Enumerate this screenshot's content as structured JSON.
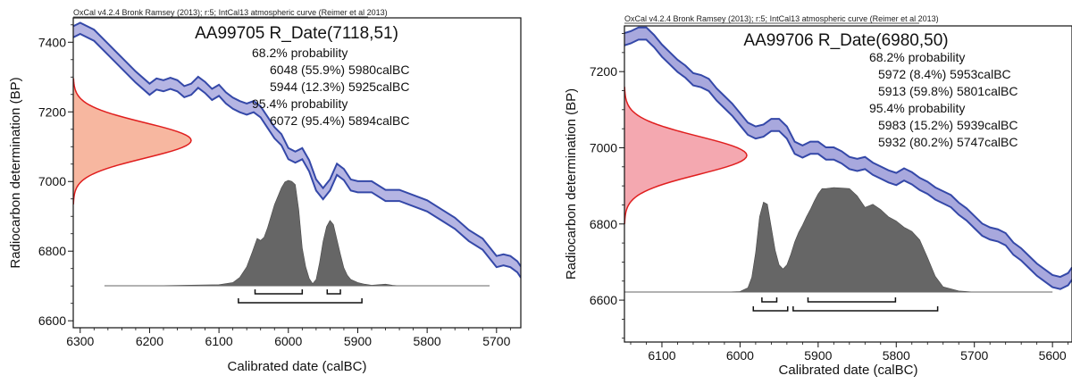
{
  "chart_data": [
    {
      "type": "area",
      "header": "OxCal v4.2.4 Bronk Ramsey (2013); r:5; IntCal13 atmospheric curve (Reimer et al 2013)",
      "title": "AA99705 R_Date(7118,51)",
      "xlabel": "Calibrated date (calBC)",
      "ylabel": "Radiocarbon determination (BP)",
      "xlim": [
        6310,
        5665
      ],
      "ylim": [
        6580,
        7470
      ],
      "xticks": [
        6300,
        6200,
        6100,
        6000,
        5900,
        5800,
        5700
      ],
      "yticks": [
        6600,
        6800,
        7000,
        7200,
        7400
      ],
      "probability_text": [
        "68.2% probability",
        "6048 (55.9%) 5980calBC",
        "5944 (12.3%) 5925calBC",
        "95.4% probability",
        "6072 (95.4%) 5894calBC"
      ],
      "radiocarbon_date": {
        "mean": 7118,
        "sigma": 51
      },
      "calibration_curve": {
        "x": [
          6310,
          6300,
          6280,
          6260,
          6240,
          6220,
          6200,
          6190,
          6180,
          6170,
          6160,
          6150,
          6140,
          6130,
          6120,
          6110,
          6100,
          6090,
          6080,
          6070,
          6060,
          6050,
          6040,
          6030,
          6020,
          6010,
          6000,
          5990,
          5980,
          5970,
          5960,
          5950,
          5940,
          5930,
          5920,
          5910,
          5900,
          5880,
          5860,
          5840,
          5820,
          5800,
          5780,
          5760,
          5740,
          5720,
          5700,
          5690,
          5680,
          5670,
          5665
        ],
        "y": [
          7430,
          7440,
          7420,
          7380,
          7340,
          7300,
          7265,
          7280,
          7275,
          7282,
          7275,
          7258,
          7265,
          7285,
          7270,
          7250,
          7262,
          7240,
          7225,
          7215,
          7208,
          7215,
          7200,
          7170,
          7140,
          7120,
          7080,
          7070,
          7080,
          7045,
          6990,
          6965,
          6990,
          7035,
          7020,
          6990,
          6985,
          6985,
          6960,
          6960,
          6945,
          6930,
          6905,
          6880,
          6845,
          6820,
          6770,
          6775,
          6770,
          6755,
          6740
        ],
        "half_width": 16
      },
      "calibrated_distribution": {
        "x": [
          6265,
          6200,
          6100,
          6080,
          6070,
          6060,
          6052,
          6045,
          6040,
          6035,
          6030,
          6025,
          6020,
          6015,
          6010,
          6005,
          6000,
          5995,
          5990,
          5985,
          5980,
          5975,
          5970,
          5965,
          5960,
          5955,
          5950,
          5945,
          5940,
          5935,
          5930,
          5925,
          5920,
          5915,
          5910,
          5900,
          5890,
          5880,
          5860,
          5850,
          5840,
          5800,
          5710
        ],
        "density": [
          0,
          0,
          0.01,
          0.03,
          0.08,
          0.18,
          0.32,
          0.45,
          0.43,
          0.46,
          0.55,
          0.66,
          0.77,
          0.85,
          0.93,
          0.985,
          1.0,
          0.99,
          0.96,
          0.72,
          0.36,
          0.18,
          0.07,
          0.02,
          0.06,
          0.22,
          0.42,
          0.56,
          0.62,
          0.58,
          0.44,
          0.3,
          0.17,
          0.1,
          0.06,
          0.03,
          0.015,
          0.005,
          0.015,
          0.005,
          0,
          0,
          0
        ]
      },
      "ranges_68": [
        [
          6048,
          5980
        ],
        [
          5944,
          5925
        ]
      ],
      "ranges_95": [
        [
          6072,
          5894
        ]
      ],
      "colors": {
        "curve_fill": "#b5b5e3",
        "curve_line": "#3448a8",
        "date_fill": "#f7b7a0",
        "date_line": "#e01e1e",
        "calibrated_fill": "#666666"
      }
    },
    {
      "type": "area",
      "header": "OxCal v4.2.4 Bronk Ramsey (2013); r:5; IntCal13 atmospheric curve (Reimer et al 2013)",
      "title": "AA99706 R_Date(6980,50)",
      "xlabel": "Calibrated date (calBC)",
      "ylabel": "Radiocarbon determination (BP)",
      "xlim": [
        6148,
        5575
      ],
      "ylim": [
        6490,
        7320
      ],
      "xticks": [
        6100,
        6000,
        5900,
        5800,
        5700,
        5600
      ],
      "yticks": [
        6600,
        6800,
        7000,
        7200
      ],
      "probability_text": [
        "68.2% probability",
        "5972 (8.4%) 5953calBC",
        "5913 (59.8%) 5801calBC",
        "95.4% probability",
        "5983 (15.2%) 5939calBC",
        "5932 (80.2%) 5747calBC"
      ],
      "radiocarbon_date": {
        "mean": 6980,
        "sigma": 50
      },
      "calibration_curve": {
        "x": [
          6148,
          6140,
          6130,
          6120,
          6110,
          6100,
          6090,
          6080,
          6070,
          6060,
          6050,
          6040,
          6030,
          6020,
          6010,
          6000,
          5990,
          5980,
          5970,
          5960,
          5950,
          5940,
          5930,
          5920,
          5910,
          5900,
          5890,
          5880,
          5870,
          5860,
          5850,
          5840,
          5830,
          5820,
          5810,
          5800,
          5790,
          5780,
          5770,
          5760,
          5750,
          5740,
          5730,
          5720,
          5710,
          5700,
          5690,
          5680,
          5670,
          5660,
          5650,
          5640,
          5630,
          5620,
          5610,
          5600,
          5590,
          5580,
          5575
        ],
        "y": [
          7285,
          7290,
          7300,
          7300,
          7280,
          7255,
          7235,
          7215,
          7200,
          7180,
          7175,
          7165,
          7140,
          7120,
          7100,
          7075,
          7050,
          7040,
          7045,
          7060,
          7060,
          7040,
          7000,
          6990,
          7000,
          7000,
          6985,
          6985,
          6975,
          6960,
          6955,
          6960,
          6945,
          6935,
          6925,
          6918,
          6930,
          6920,
          6905,
          6895,
          6880,
          6870,
          6860,
          6840,
          6825,
          6805,
          6785,
          6775,
          6770,
          6760,
          6735,
          6720,
          6700,
          6680,
          6665,
          6650,
          6645,
          6655,
          6670
        ],
        "half_width": 16
      },
      "calibrated_distribution": {
        "x": [
          6148,
          6020,
          6000,
          5990,
          5985,
          5980,
          5975,
          5970,
          5965,
          5960,
          5955,
          5950,
          5945,
          5940,
          5935,
          5930,
          5925,
          5920,
          5915,
          5910,
          5905,
          5900,
          5895,
          5890,
          5880,
          5870,
          5860,
          5850,
          5840,
          5830,
          5820,
          5810,
          5800,
          5790,
          5780,
          5770,
          5760,
          5750,
          5740,
          5720,
          5700,
          5600
        ],
        "density": [
          0,
          0,
          0.005,
          0.04,
          0.14,
          0.38,
          0.72,
          0.86,
          0.84,
          0.62,
          0.4,
          0.26,
          0.22,
          0.26,
          0.36,
          0.48,
          0.57,
          0.64,
          0.72,
          0.79,
          0.87,
          0.94,
          0.99,
          0.99,
          1.0,
          0.995,
          0.99,
          0.92,
          0.81,
          0.84,
          0.79,
          0.72,
          0.68,
          0.62,
          0.58,
          0.5,
          0.33,
          0.15,
          0.05,
          0.01,
          0,
          0
        ]
      },
      "ranges_68": [
        [
          5972,
          5953
        ],
        [
          5913,
          5801
        ]
      ],
      "ranges_95": [
        [
          5983,
          5939
        ],
        [
          5932,
          5747
        ]
      ],
      "colors": {
        "curve_fill": "#a8a8dd",
        "curve_line": "#3448a8",
        "date_fill": "#f4a8b0",
        "date_line": "#e01e1e",
        "calibrated_fill": "#666666"
      }
    }
  ]
}
